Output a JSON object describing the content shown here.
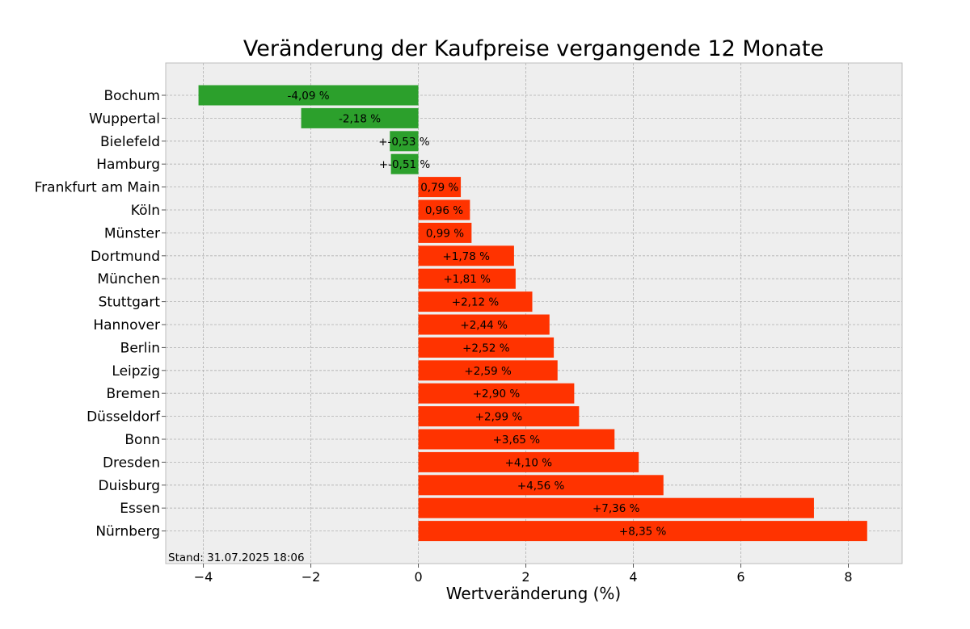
{
  "chart_data": {
    "type": "bar",
    "orientation": "horizontal",
    "title": "Veränderung der Kaufpreise vergangende 12 Monate",
    "xlabel": "Wertveränderung (%)",
    "ylabel": "",
    "xlim": [
      -4.7,
      9.0
    ],
    "xticks": [
      -4,
      -2,
      0,
      2,
      4,
      6,
      8
    ],
    "xtick_labels": [
      "−4",
      "−2",
      "0",
      "2",
      "4",
      "6",
      "8"
    ],
    "grid": true,
    "footnote": "Stand: 31.07.2025 18:06",
    "colors": {
      "positive": "#ff3300",
      "negative": "#2ca02c",
      "background": "#eeeeee",
      "grid": "#b0b0b0",
      "frame": "#bcbcbc"
    },
    "categories": [
      "Bochum",
      "Wuppertal",
      "Bielefeld",
      "Hamburg",
      "Frankfurt am Main",
      "Köln",
      "Münster",
      "Dortmund",
      "München",
      "Stuttgart",
      "Hannover",
      "Berlin",
      "Leipzig",
      "Bremen",
      "Düsseldorf",
      "Bonn",
      "Dresden",
      "Duisburg",
      "Essen",
      "Nürnberg"
    ],
    "values": [
      -4.09,
      -2.18,
      -0.53,
      -0.51,
      0.79,
      0.96,
      0.99,
      1.78,
      1.81,
      2.12,
      2.44,
      2.52,
      2.59,
      2.9,
      2.99,
      3.65,
      4.1,
      4.56,
      7.36,
      8.35
    ],
    "data_labels": [
      "-4,09 %",
      "-2,18 %",
      "+-0,53 %",
      "+-0,51 %",
      "0,79 %",
      "0,96 %",
      "0,99 %",
      "+1,78 %",
      "+1,81 %",
      "+2,12 %",
      "+2,44 %",
      "+2,52 %",
      "+2,59 %",
      "+2,90 %",
      "+2,99 %",
      "+3,65 %",
      "+4,10 %",
      "+4,56 %",
      "+7,36 %",
      "+8,35 %"
    ]
  }
}
